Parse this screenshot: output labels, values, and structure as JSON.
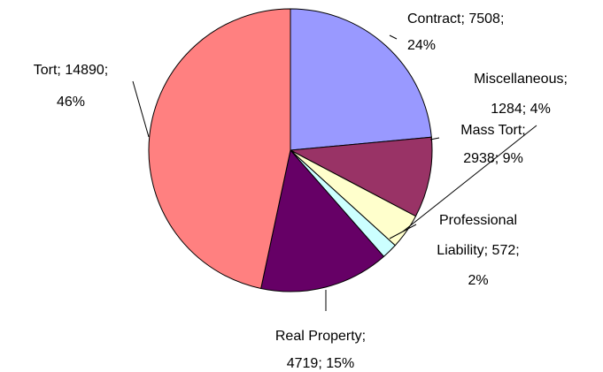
{
  "chart_data": {
    "type": "pie",
    "categories": [
      "Contract",
      "Mass Tort",
      "Miscellaneous",
      "Professional Liability",
      "Real Property",
      "Tort"
    ],
    "values": [
      7508,
      2938,
      1284,
      572,
      4719,
      14890
    ],
    "colors": [
      "#9999ff",
      "#993366",
      "#ffffcc",
      "#ccffff",
      "#660066",
      "#ff8080"
    ],
    "labels": [
      [
        "Contract; 7508;",
        "24%"
      ],
      [
        "Mass Tort;",
        "2938; 9%"
      ],
      [
        "Miscellaneous;",
        "1284; 4%"
      ],
      [
        "Professional",
        "Liability; 572;",
        "2%"
      ],
      [
        "Real Property;",
        "4719; 15%"
      ],
      [
        "Tort; 14890;",
        "46%"
      ]
    ]
  }
}
